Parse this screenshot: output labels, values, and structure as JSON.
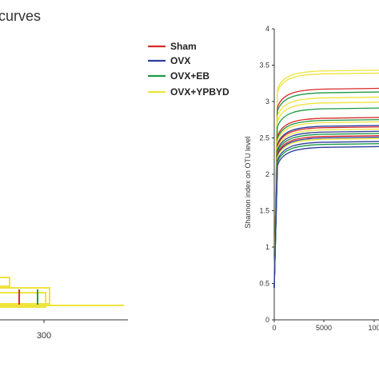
{
  "figure_title": "curves",
  "legend": [
    {
      "label": "Sham",
      "color": "#d92b2b"
    },
    {
      "label": "OVX",
      "color": "#2c3e9b"
    },
    {
      "label": "OVX+EB",
      "color": "#1e9a46"
    },
    {
      "label": "OVX+YPBYD",
      "color": "#efe43a"
    }
  ],
  "chart_data": [
    {
      "type": "line",
      "title": "curves",
      "xlabel": "",
      "ylabel": "",
      "x_ticks": [
        "300"
      ],
      "grid": false,
      "note": "partially visible rank-abundance style panel"
    },
    {
      "type": "line",
      "title": "",
      "xlabel": "",
      "ylabel": "Shannon index on OTU level",
      "ylim": [
        0,
        4
      ],
      "y_ticks": [
        "0",
        "0.5",
        "1",
        "1.5",
        "2",
        "2.5",
        "3",
        "3.5",
        "4"
      ],
      "x_ticks": [
        "0",
        "5000",
        "100"
      ],
      "grid": false,
      "series": [
        {
          "group": "OVX+YPBYD",
          "color": "#efe43a",
          "plateau": 3.42
        },
        {
          "group": "OVX+YPBYD",
          "color": "#efe43a",
          "plateau": 3.38
        },
        {
          "group": "Sham",
          "color": "#d92b2b",
          "plateau": 3.17
        },
        {
          "group": "OVX+EB",
          "color": "#1e9a46",
          "plateau": 3.12
        },
        {
          "group": "OVX+YPBYD",
          "color": "#efe43a",
          "plateau": 3.05
        },
        {
          "group": "OVX+YPBYD",
          "color": "#efe43a",
          "plateau": 2.98
        },
        {
          "group": "OVX+EB",
          "color": "#1e9a46",
          "plateau": 2.9
        },
        {
          "group": "Sham",
          "color": "#d92b2b",
          "plateau": 2.77
        },
        {
          "group": "OVX+EB",
          "color": "#1e9a46",
          "plateau": 2.74
        },
        {
          "group": "OVX+YPBYD",
          "color": "#efe43a",
          "plateau": 2.71
        },
        {
          "group": "OVX",
          "color": "#2c3e9b",
          "plateau": 2.66
        },
        {
          "group": "Sham",
          "color": "#d92b2b",
          "plateau": 2.64
        },
        {
          "group": "OVX+YPBYD",
          "color": "#efe43a",
          "plateau": 2.61
        },
        {
          "group": "OVX",
          "color": "#2c3e9b",
          "plateau": 2.58
        },
        {
          "group": "OVX+EB",
          "color": "#1e9a46",
          "plateau": 2.55
        },
        {
          "group": "Sham",
          "color": "#d92b2b",
          "plateau": 2.52
        },
        {
          "group": "OVX",
          "color": "#2c3e9b",
          "plateau": 2.5
        },
        {
          "group": "OVX+YPBYD",
          "color": "#efe43a",
          "plateau": 2.48
        },
        {
          "group": "OVX",
          "color": "#2c3e9b",
          "plateau": 2.44
        },
        {
          "group": "OVX+EB",
          "color": "#1e9a46",
          "plateau": 2.41
        },
        {
          "group": "OVX",
          "color": "#2c3e9b",
          "plateau": 2.37
        }
      ]
    }
  ]
}
